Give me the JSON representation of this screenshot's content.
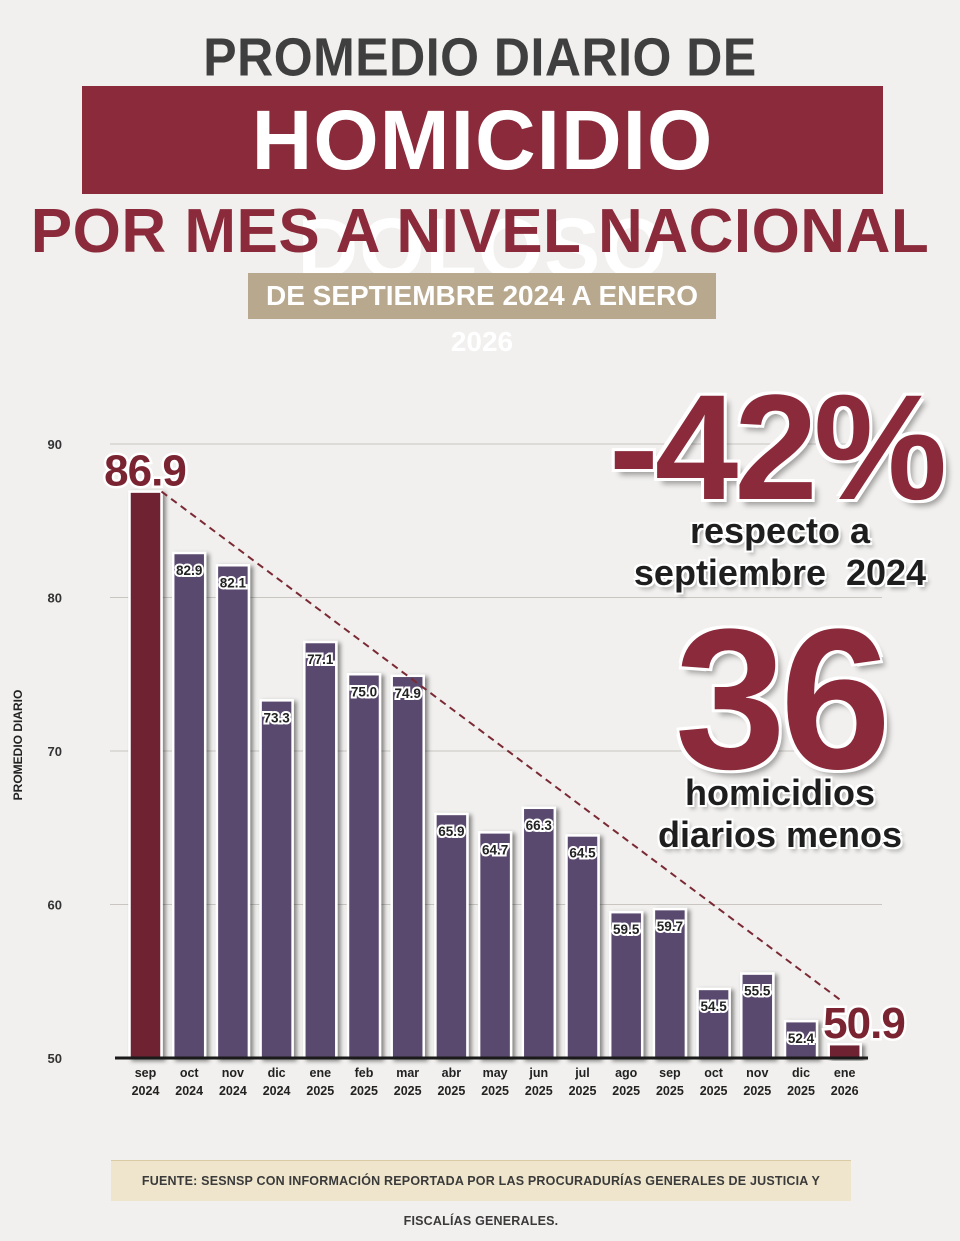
{
  "header": {
    "line1": "PROMEDIO DIARIO DE",
    "line2": "HOMICIDIO DOLOSO",
    "line3": "POR MES A NIVEL NACIONAL",
    "period": "DE SEPTIEMBRE 2024 A ENERO 2026"
  },
  "stats": {
    "change_value": "-42%",
    "change_line1": "respecto a",
    "change_line2": "septiembre  2024",
    "reduction_value": "36",
    "reduction_line1": "homicidios",
    "reduction_line2": "diarios menos"
  },
  "source": "FUENTE: SESNSP CON INFORMACIÓN REPORTADA POR LAS PROCURADURÍAS GENERALES DE JUSTICIA Y FISCALÍAS GENERALES.",
  "colors": {
    "bar": "#5a4a6e",
    "highlight_bar": "#6e2430",
    "accent": "#8a2a3a",
    "date_band": "#b8a88e"
  },
  "chart_data": {
    "type": "bar",
    "ylabel": "PROMEDIO DIARIO",
    "ylim": [
      50,
      90
    ],
    "yticks": [
      50,
      60,
      70,
      80,
      90
    ],
    "grid": true,
    "categories": [
      [
        "sep",
        "2024"
      ],
      [
        "oct",
        "2024"
      ],
      [
        "nov",
        "2024"
      ],
      [
        "dic",
        "2024"
      ],
      [
        "ene",
        "2025"
      ],
      [
        "feb",
        "2025"
      ],
      [
        "mar",
        "2025"
      ],
      [
        "abr",
        "2025"
      ],
      [
        "may",
        "2025"
      ],
      [
        "jun",
        "2025"
      ],
      [
        "jul",
        "2025"
      ],
      [
        "ago",
        "2025"
      ],
      [
        "sep",
        "2025"
      ],
      [
        "oct",
        "2025"
      ],
      [
        "nov",
        "2025"
      ],
      [
        "dic",
        "2025"
      ],
      [
        "ene",
        "2026"
      ]
    ],
    "values": [
      86.9,
      82.9,
      82.1,
      73.3,
      77.1,
      75.0,
      74.9,
      65.9,
      64.7,
      66.3,
      64.5,
      59.5,
      59.7,
      54.5,
      55.5,
      52.4,
      50.9
    ],
    "labels": [
      "86.9",
      "82.9",
      "82.1",
      "73.3",
      "77.1",
      "75.0",
      "74.9",
      "65.9",
      "64.7",
      "66.3",
      "64.5",
      "59.5",
      "59.7",
      "54.5",
      "55.5",
      "52.4",
      "50.9"
    ],
    "highlighted": [
      0,
      16
    ],
    "trend_line": {
      "from_index": 0,
      "to_index": 16
    }
  }
}
